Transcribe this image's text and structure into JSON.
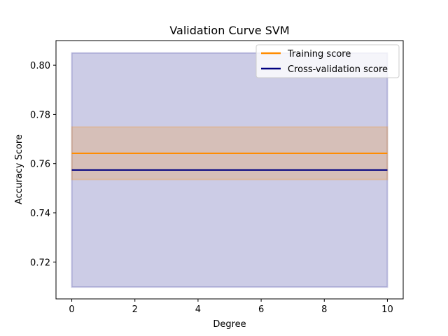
{
  "chart_data": {
    "type": "line",
    "title": "Validation Curve SVM",
    "xlabel": "Degree",
    "ylabel": "Accuracy Score",
    "xlim": [
      -0.5,
      10.5
    ],
    "ylim": [
      0.705,
      0.81
    ],
    "xticks": [
      0,
      2,
      4,
      6,
      8,
      10
    ],
    "yticks": [
      0.72,
      0.74,
      0.76,
      0.78,
      0.8
    ],
    "ytick_labels": [
      "0.72",
      "0.74",
      "0.76",
      "0.78",
      "0.80"
    ],
    "x": [
      0,
      10
    ],
    "legend_placement": "upper-right",
    "grid": false,
    "series": [
      {
        "name": "Training score",
        "color": "#ff8c00",
        "values": [
          0.7642,
          0.7642
        ],
        "band": [
          [
            0.7535,
            0.7749
          ],
          [
            0.7535,
            0.7749
          ]
        ]
      },
      {
        "name": "Cross-validation score",
        "color": "#000080",
        "values": [
          0.7574,
          0.7574
        ],
        "band": [
          [
            0.7098,
            0.805
          ],
          [
            0.7098,
            0.805
          ]
        ]
      }
    ]
  }
}
